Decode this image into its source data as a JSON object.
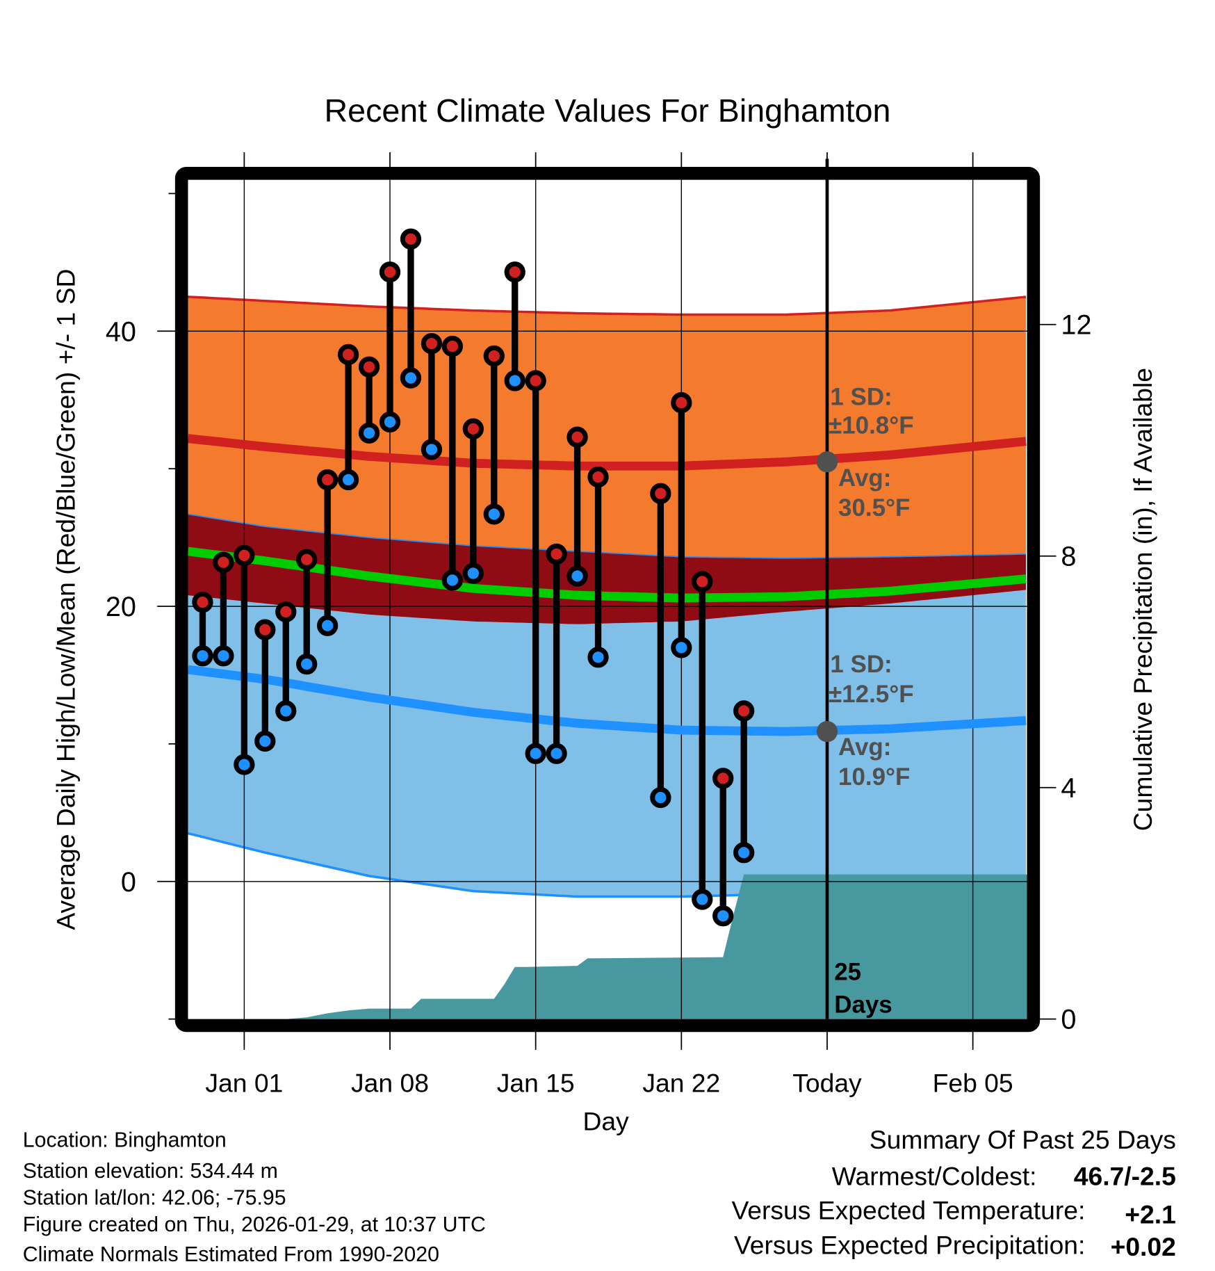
{
  "chart_data": {
    "type": "line",
    "title": "Recent Climate Values For Binghamton",
    "xlabel": "Day",
    "ylabel": "Average Daily High/Low/Mean (Red/Blue/Green) +/- 1 SD",
    "ylabel_right": "Cumulative Precipitation (in), If Available",
    "ylim": [
      -10,
      51
    ],
    "ylim_right": [
      0,
      14.5
    ],
    "x_start": "Dec 28",
    "x_tick_labels": [
      "Jan 01",
      "Jan 08",
      "Jan 15",
      "Jan 22",
      "Today",
      "Feb 05"
    ],
    "x_tick_days": [
      4,
      11,
      18,
      25,
      32,
      39
    ],
    "x_range_days": [
      1.3,
      41.6
    ],
    "y_ticks": [
      0,
      20,
      40
    ],
    "y_minor_ticks": [
      -10,
      10,
      30,
      50
    ],
    "y_ticks_right": [
      0,
      4,
      8,
      12
    ],
    "grid": true,
    "today_day": 32,
    "normals": {
      "days": [
        1.3,
        5,
        10,
        15,
        20,
        25,
        30,
        35,
        41.6
      ],
      "high_plus_sd": [
        42.5,
        42.2,
        41.8,
        41.5,
        41.3,
        41.2,
        41.2,
        41.5,
        42.5
      ],
      "high_avg": [
        32.2,
        31.6,
        30.9,
        30.4,
        30.2,
        30.2,
        30.5,
        31.0,
        32.0
      ],
      "high_minus_sd": [
        26.7,
        25.8,
        25.0,
        24.4,
        24.0,
        23.6,
        23.5,
        23.6,
        23.8
      ],
      "mean": [
        24.0,
        23.3,
        22.2,
        21.3,
        20.8,
        20.6,
        20.7,
        21.1,
        22.0
      ],
      "low_plus_sd": [
        20.8,
        20.2,
        19.4,
        18.9,
        18.7,
        18.9,
        19.6,
        20.2,
        21.2
      ],
      "low_avg": [
        15.4,
        14.7,
        13.4,
        12.3,
        11.5,
        11.0,
        10.9,
        11.1,
        11.7
      ],
      "low_minus_sd": [
        3.5,
        2.1,
        0.4,
        -0.7,
        -1.1,
        -1.1,
        -0.9,
        -0.5,
        0.3
      ]
    },
    "observed": {
      "series": [
        {
          "name": "High",
          "color": "#d02020"
        },
        {
          "name": "Low",
          "color": "#1e90ff"
        }
      ],
      "points": [
        {
          "day": 2,
          "date": "Dec 30",
          "high": 20.3,
          "low": 16.4
        },
        {
          "day": 3,
          "date": "Dec 31",
          "high": 23.2,
          "low": 16.4
        },
        {
          "day": 4,
          "date": "Jan 01",
          "high": 23.7,
          "low": 8.5
        },
        {
          "day": 5,
          "date": "Jan 02",
          "high": 18.3,
          "low": 10.2
        },
        {
          "day": 6,
          "date": "Jan 03",
          "high": 19.6,
          "low": 12.4
        },
        {
          "day": 7,
          "date": "Jan 04",
          "high": 23.4,
          "low": 15.8
        },
        {
          "day": 8,
          "date": "Jan 05",
          "high": 29.2,
          "low": 18.6
        },
        {
          "day": 9,
          "date": "Jan 06",
          "high": 38.3,
          "low": 29.2
        },
        {
          "day": 10,
          "date": "Jan 07",
          "high": 37.4,
          "low": 32.6
        },
        {
          "day": 11,
          "date": "Jan 08",
          "high": 44.3,
          "low": 33.4
        },
        {
          "day": 12,
          "date": "Jan 09",
          "high": 46.7,
          "low": 36.6
        },
        {
          "day": 13,
          "date": "Jan 10",
          "high": 39.1,
          "low": 31.4
        },
        {
          "day": 14,
          "date": "Jan 11",
          "high": 38.9,
          "low": 21.9
        },
        {
          "day": 15,
          "date": "Jan 12",
          "high": 32.9,
          "low": 22.4
        },
        {
          "day": 16,
          "date": "Jan 13",
          "high": 38.2,
          "low": 26.7
        },
        {
          "day": 17,
          "date": "Jan 14",
          "high": 44.3,
          "low": 36.4
        },
        {
          "day": 18,
          "date": "Jan 15",
          "high": 36.4,
          "low": 9.3
        },
        {
          "day": 19,
          "date": "Jan 16",
          "high": 23.8,
          "low": 9.3
        },
        {
          "day": 20,
          "date": "Jan 17",
          "high": 32.3,
          "low": 22.2
        },
        {
          "day": 21,
          "date": "Jan 18",
          "high": 29.4,
          "low": 16.3
        },
        {
          "day": 24,
          "date": "Jan 21",
          "high": 28.2,
          "low": 6.1
        },
        {
          "day": 25,
          "date": "Jan 22",
          "high": 34.8,
          "low": 17.0
        },
        {
          "day": 26,
          "date": "Jan 23",
          "high": 21.8,
          "low": -1.3
        },
        {
          "day": 27,
          "date": "Jan 24",
          "high": 7.5,
          "low": -2.5
        },
        {
          "day": 28,
          "date": "Jan 25",
          "high": 12.4,
          "low": 2.1
        }
      ]
    },
    "precipitation_cumulative": {
      "days": [
        1.3,
        6,
        7,
        8,
        9,
        10,
        12,
        12.5,
        13,
        16,
        16.5,
        17,
        17.5,
        20,
        20.5,
        21,
        27,
        27.5,
        28,
        41.6
      ],
      "values": [
        0,
        0,
        0.03,
        0.1,
        0.15,
        0.18,
        0.18,
        0.35,
        0.35,
        0.35,
        0.6,
        0.9,
        0.9,
        0.92,
        1.05,
        1.05,
        1.07,
        1.8,
        2.5,
        2.5
      ]
    },
    "annotations": {
      "high_sd_line1": "1 SD:",
      "high_sd_line2": "±10.8°F",
      "high_avg_line1": "Avg:",
      "high_avg_line2": "30.5°F",
      "low_sd_line1": "1 SD:",
      "low_sd_line2": "±12.5°F",
      "low_avg_line1": "Avg:",
      "low_avg_line2": "10.9°F",
      "days_line1": "25",
      "days_line2": "Days",
      "high_avg_value": 30.5,
      "low_avg_value": 10.9
    },
    "colors": {
      "high_band": "#f47a2e",
      "high_line": "#d02020",
      "overlap_band": "#900c14",
      "mean_line": "#00cc00",
      "low_band": "#80c0e8",
      "low_line": "#1e90ff",
      "precip": "#4898a0",
      "annot": "#505050"
    }
  },
  "footer_left": [
    "Location: Binghamton",
    "Station elevation: 534.44 m",
    "Station lat/lon: 42.06; -75.95",
    "Figure created on Thu, 2026-01-29, at 10:37 UTC",
    "Climate Normals Estimated From 1990-2020"
  ],
  "summary": {
    "title": "Summary Of Past 25 Days",
    "warmest_coldest_label": "Warmest/Coldest:",
    "warmest_coldest_value": "46.7/-2.5",
    "temp_label": "Versus Expected Temperature:",
    "temp_value": "+2.1",
    "precip_label": "Versus Expected Precipitation:",
    "precip_value": "+0.02",
    "temp_color": "#d02020",
    "precip_color": "#22bb22"
  }
}
